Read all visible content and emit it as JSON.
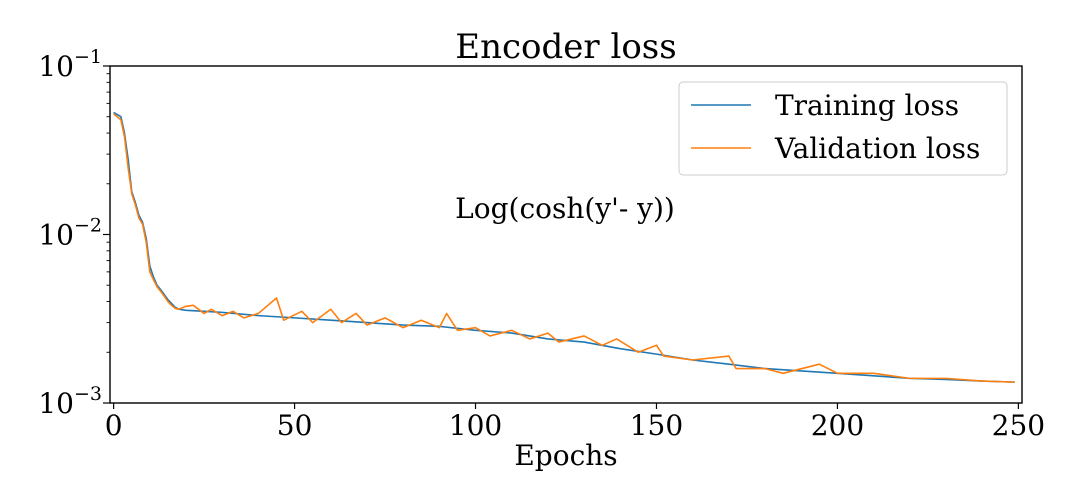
{
  "chart_data": {
    "type": "line",
    "title": "Encoder loss",
    "xlabel": "Epochs",
    "ylabel": "",
    "annotation": "Log(cosh(y'- y))",
    "xlim": [
      -1,
      251
    ],
    "ylim": [
      0.001,
      0.1
    ],
    "yscale": "log",
    "x_ticks": [
      0,
      50,
      100,
      150,
      200,
      250
    ],
    "y_ticks": [
      {
        "value": 0.001,
        "base": "10",
        "exp": "−3"
      },
      {
        "value": 0.01,
        "base": "10",
        "exp": "−2"
      },
      {
        "value": 0.1,
        "base": "10",
        "exp": "−1"
      }
    ],
    "grid": false,
    "legend_position": "top-right",
    "series": [
      {
        "name": "Training loss",
        "color": "#1f77b4",
        "points": [
          [
            0,
            0.053
          ],
          [
            2,
            0.05
          ],
          [
            3,
            0.04
          ],
          [
            4,
            0.028
          ],
          [
            5,
            0.018
          ],
          [
            6,
            0.0155
          ],
          [
            7,
            0.013
          ],
          [
            8,
            0.0118
          ],
          [
            9,
            0.0095
          ],
          [
            10,
            0.0065
          ],
          [
            11,
            0.0056
          ],
          [
            12,
            0.005
          ],
          [
            13,
            0.0047
          ],
          [
            14,
            0.0044
          ],
          [
            15,
            0.0041
          ],
          [
            16,
            0.0039
          ],
          [
            17,
            0.0037
          ],
          [
            18,
            0.0036
          ],
          [
            20,
            0.00355
          ],
          [
            25,
            0.0035
          ],
          [
            30,
            0.00345
          ],
          [
            40,
            0.0033
          ],
          [
            50,
            0.0032
          ],
          [
            60,
            0.0031
          ],
          [
            70,
            0.003
          ],
          [
            80,
            0.0029
          ],
          [
            90,
            0.00285
          ],
          [
            100,
            0.0027
          ],
          [
            110,
            0.0026
          ],
          [
            120,
            0.0024
          ],
          [
            130,
            0.0023
          ],
          [
            140,
            0.0021
          ],
          [
            150,
            0.00195
          ],
          [
            160,
            0.0018
          ],
          [
            170,
            0.0017
          ],
          [
            180,
            0.0016
          ],
          [
            190,
            0.00155
          ],
          [
            200,
            0.0015
          ],
          [
            210,
            0.00145
          ],
          [
            220,
            0.0014
          ],
          [
            230,
            0.00138
          ],
          [
            240,
            0.00135
          ],
          [
            249,
            0.00133
          ]
        ]
      },
      {
        "name": "Validation loss",
        "color": "#ff7f0e",
        "points": [
          [
            0,
            0.052
          ],
          [
            2,
            0.048
          ],
          [
            3,
            0.038
          ],
          [
            4,
            0.025
          ],
          [
            5,
            0.0175
          ],
          [
            6,
            0.015
          ],
          [
            7,
            0.0125
          ],
          [
            8,
            0.0115
          ],
          [
            9,
            0.009
          ],
          [
            10,
            0.006
          ],
          [
            11,
            0.0054
          ],
          [
            12,
            0.0049
          ],
          [
            13,
            0.0046
          ],
          [
            14,
            0.0043
          ],
          [
            15,
            0.004
          ],
          [
            16,
            0.0038
          ],
          [
            17,
            0.00365
          ],
          [
            18,
            0.0036
          ],
          [
            20,
            0.00375
          ],
          [
            22,
            0.0038
          ],
          [
            25,
            0.0034
          ],
          [
            27,
            0.0036
          ],
          [
            30,
            0.0033
          ],
          [
            33,
            0.0035
          ],
          [
            36,
            0.0032
          ],
          [
            40,
            0.0034
          ],
          [
            45,
            0.0042
          ],
          [
            47,
            0.0031
          ],
          [
            52,
            0.0035
          ],
          [
            55,
            0.003
          ],
          [
            60,
            0.0036
          ],
          [
            63,
            0.003
          ],
          [
            67,
            0.0034
          ],
          [
            70,
            0.0029
          ],
          [
            75,
            0.0032
          ],
          [
            80,
            0.0028
          ],
          [
            85,
            0.0031
          ],
          [
            90,
            0.0028
          ],
          [
            92,
            0.0034
          ],
          [
            95,
            0.0027
          ],
          [
            100,
            0.0028
          ],
          [
            104,
            0.0025
          ],
          [
            110,
            0.0027
          ],
          [
            115,
            0.0024
          ],
          [
            120,
            0.0026
          ],
          [
            123,
            0.0023
          ],
          [
            130,
            0.0025
          ],
          [
            135,
            0.0022
          ],
          [
            139,
            0.0024
          ],
          [
            145,
            0.002
          ],
          [
            150,
            0.0022
          ],
          [
            152,
            0.0019
          ],
          [
            160,
            0.0018
          ],
          [
            170,
            0.0019
          ],
          [
            172,
            0.0016
          ],
          [
            180,
            0.0016
          ],
          [
            185,
            0.0015
          ],
          [
            195,
            0.0017
          ],
          [
            200,
            0.0015
          ],
          [
            210,
            0.0015
          ],
          [
            220,
            0.0014
          ],
          [
            230,
            0.0014
          ],
          [
            240,
            0.00135
          ],
          [
            249,
            0.00133
          ]
        ]
      }
    ]
  }
}
